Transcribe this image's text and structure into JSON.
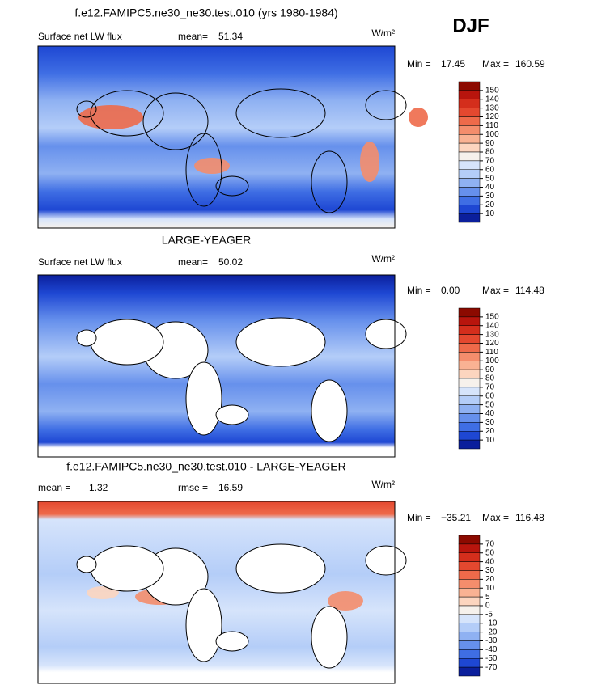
{
  "season": "DJF",
  "panels": [
    {
      "title": "f.e12.FAMIPC5.ne30_ne30.test.010 (yrs 1980-1984)",
      "left_label": "Surface net LW flux",
      "stat_label": "mean=",
      "stat_value": "51.34",
      "units": "W/m²",
      "min_label": "Min =",
      "min": "17.45",
      "max_label": "Max =",
      "max": "160.59",
      "colorbar": {
        "levels": [
          150,
          140,
          130,
          120,
          110,
          100,
          90,
          80,
          70,
          60,
          50,
          40,
          30,
          20,
          10
        ]
      }
    },
    {
      "title": "LARGE-YEAGER",
      "left_label": "Surface net LW flux",
      "stat_label": "mean=",
      "stat_value": "50.02",
      "units": "W/m²",
      "min_label": "Min =",
      "min": "0.00",
      "max_label": "Max =",
      "max": "114.48",
      "colorbar": {
        "levels": [
          150,
          140,
          130,
          120,
          110,
          100,
          90,
          80,
          70,
          60,
          50,
          40,
          30,
          20,
          10
        ]
      }
    },
    {
      "title": "f.e12.FAMIPC5.ne30_ne30.test.010 - LARGE-YEAGER",
      "left_label": "mean =",
      "left_value": "1.32",
      "stat_label": "rmse =",
      "stat_value": "16.59",
      "units": "W/m²",
      "min_label": "Min =",
      "min": "−35.21",
      "max_label": "Max =",
      "max": "116.48",
      "colorbar": {
        "levels": [
          70,
          50,
          40,
          30,
          20,
          10,
          5,
          0,
          -5,
          -10,
          -20,
          -30,
          -40,
          -50,
          -70
        ]
      }
    }
  ]
}
